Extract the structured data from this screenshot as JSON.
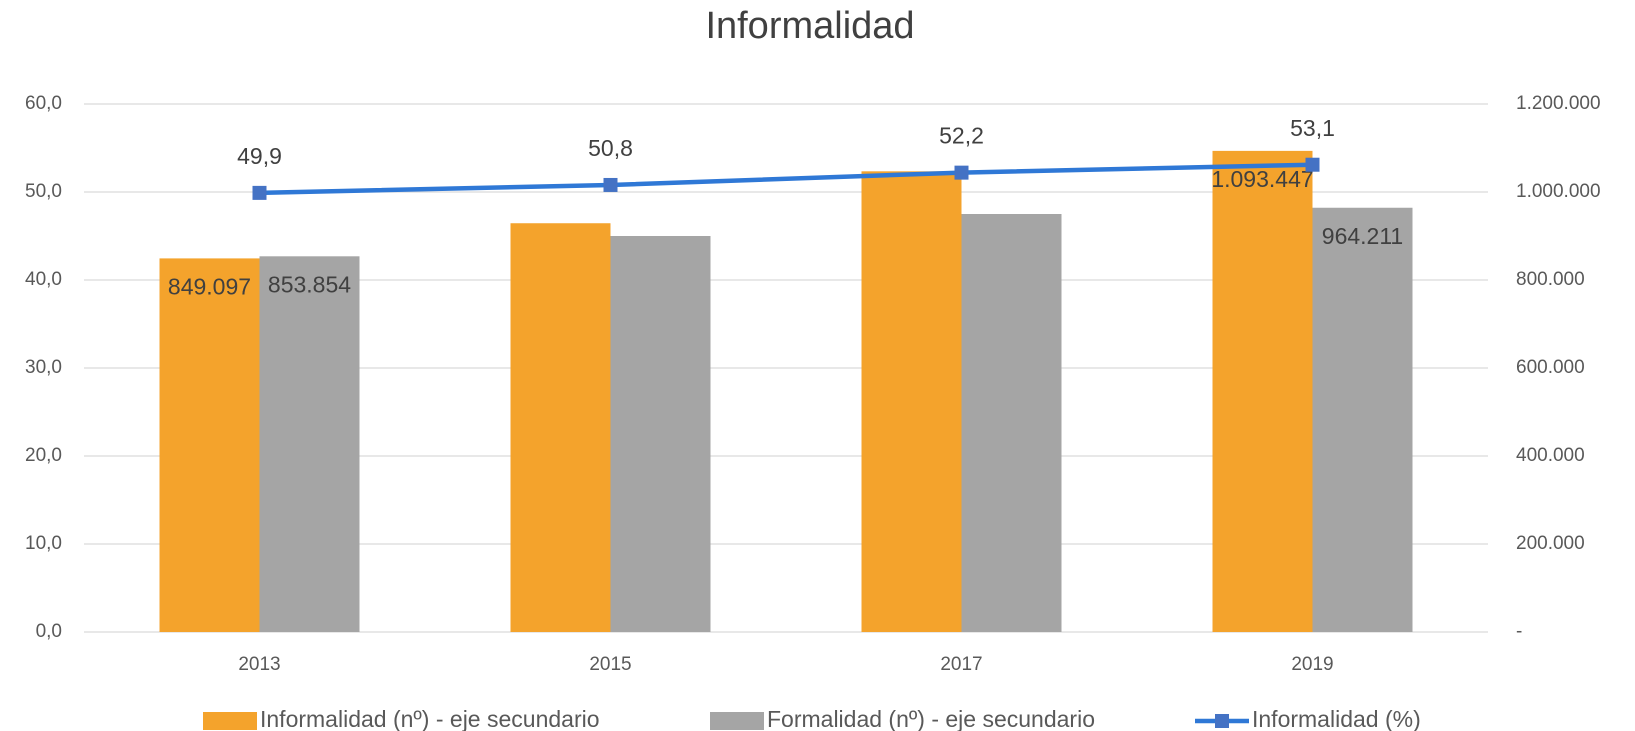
{
  "chart_data": {
    "type": "bar_line",
    "title": "Informalidad",
    "categories": [
      "2013",
      "2015",
      "2017",
      "2019"
    ],
    "series": [
      {
        "name": "Informalidad (nº) - eje secundario",
        "type": "bar",
        "axis": "y2",
        "color": "#f4a32c",
        "values": [
          849097,
          929000,
          1047000,
          1093447
        ],
        "value_labels": [
          "849.097",
          null,
          null,
          "1.093.447"
        ]
      },
      {
        "name": "Formalidad (nº) - eje secundario",
        "type": "bar",
        "axis": "y2",
        "color": "#a5a5a5",
        "values": [
          853854,
          900000,
          950000,
          964211
        ],
        "value_labels": [
          "853.854",
          null,
          null,
          "964.211"
        ]
      },
      {
        "name": "Informalidad (%)",
        "type": "line",
        "axis": "y",
        "color": "#2f78d6",
        "values": [
          49.9,
          50.8,
          52.2,
          53.1
        ],
        "value_labels": [
          "49,9",
          "50,8",
          "52,2",
          "53,1"
        ]
      }
    ],
    "ylim": [
      0,
      60
    ],
    "yticks": [
      {
        "value": 0,
        "label": "0,0"
      },
      {
        "value": 10,
        "label": "10,0"
      },
      {
        "value": 20,
        "label": "20,0"
      },
      {
        "value": 30,
        "label": "30,0"
      },
      {
        "value": 40,
        "label": "40,0"
      },
      {
        "value": 50,
        "label": "50,0"
      },
      {
        "value": 60,
        "label": "60,0"
      }
    ],
    "y2lim": [
      0,
      1200000
    ],
    "y2ticks": [
      {
        "value": 0,
        "label": "-"
      },
      {
        "value": 200000,
        "label": "200.000"
      },
      {
        "value": 400000,
        "label": "400.000"
      },
      {
        "value": 600000,
        "label": "600.000"
      },
      {
        "value": 800000,
        "label": "800.000"
      },
      {
        "value": 1000000,
        "label": "1.000.000"
      },
      {
        "value": 1200000,
        "label": "1.200.000"
      }
    ],
    "grid": true
  }
}
